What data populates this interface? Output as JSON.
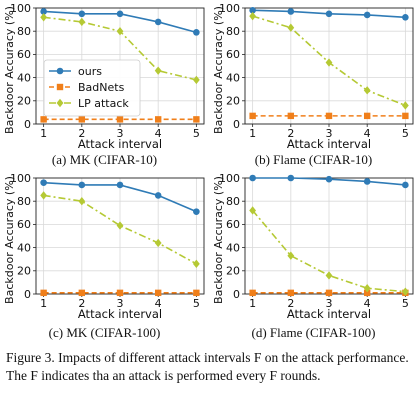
{
  "figure": {
    "caption": "Figure 3.  Impacts of different attack intervals F on the attack performance. The F indicates tha an attack is performed every F rounds."
  },
  "legend_entries": [
    "ours",
    "BadNets",
    "LP attack"
  ],
  "colors": {
    "ours": "#2f7bb6",
    "BadNets": "#f07f1a",
    "LP attack": "#b5c934"
  },
  "chart_data": [
    {
      "type": "line",
      "subcaption": "(a) MK (CIFAR-10)",
      "ylabel": "Backdoor Accuracy (%)",
      "xlabel": "Attack interval",
      "x": [
        1,
        2,
        3,
        4,
        5
      ],
      "xticks": [
        "1",
        "2",
        "3",
        "4",
        "5"
      ],
      "yticks": [
        "0",
        "20",
        "40",
        "60",
        "80",
        "100"
      ],
      "ylim": [
        0,
        100
      ],
      "grid": true,
      "legend": "bottom-left",
      "series": [
        {
          "name": "ours",
          "values": [
            97,
            95,
            95,
            88,
            79
          ]
        },
        {
          "name": "BadNets",
          "values": [
            4,
            4,
            4,
            4,
            4
          ]
        },
        {
          "name": "LP attack",
          "values": [
            92,
            88,
            80,
            46,
            38
          ]
        }
      ]
    },
    {
      "type": "line",
      "subcaption": "(b) Flame (CIFAR-10)",
      "ylabel": "Backdoor Accuracy (%)",
      "xlabel": "Attack interval",
      "x": [
        1,
        2,
        3,
        4,
        5
      ],
      "xticks": [
        "1",
        "2",
        "3",
        "4",
        "5"
      ],
      "yticks": [
        "0",
        "20",
        "40",
        "60",
        "80",
        "100"
      ],
      "ylim": [
        0,
        100
      ],
      "grid": true,
      "series": [
        {
          "name": "ours",
          "values": [
            98,
            97,
            95,
            94,
            92
          ]
        },
        {
          "name": "BadNets",
          "values": [
            7,
            7,
            7,
            7,
            7
          ]
        },
        {
          "name": "LP attack",
          "values": [
            93,
            83,
            53,
            29,
            16
          ]
        }
      ]
    },
    {
      "type": "line",
      "subcaption": "(c) MK (CIFAR-100)",
      "ylabel": "Backdoor Accuracy (%)",
      "xlabel": "Attack interval",
      "x": [
        1,
        2,
        3,
        4,
        5
      ],
      "xticks": [
        "1",
        "2",
        "3",
        "4",
        "5"
      ],
      "yticks": [
        "0",
        "20",
        "40",
        "60",
        "80",
        "100"
      ],
      "ylim": [
        0,
        100
      ],
      "grid": true,
      "series": [
        {
          "name": "ours",
          "values": [
            96,
            94,
            94,
            85,
            71
          ]
        },
        {
          "name": "BadNets",
          "values": [
            1,
            1,
            1,
            1,
            1
          ]
        },
        {
          "name": "LP attack",
          "values": [
            85,
            80,
            59,
            44,
            26
          ]
        }
      ]
    },
    {
      "type": "line",
      "subcaption": "(d) Flame (CIFAR-100)",
      "ylabel": "Backdoor Accuracy (%)",
      "xlabel": "Attack interval",
      "x": [
        1,
        2,
        3,
        4,
        5
      ],
      "xticks": [
        "1",
        "2",
        "3",
        "4",
        "5"
      ],
      "yticks": [
        "0",
        "20",
        "40",
        "60",
        "80",
        "100"
      ],
      "ylim": [
        0,
        100
      ],
      "grid": true,
      "series": [
        {
          "name": "ours",
          "values": [
            100,
            100,
            99,
            97,
            94
          ]
        },
        {
          "name": "BadNets",
          "values": [
            1,
            1,
            1,
            1,
            1
          ]
        },
        {
          "name": "LP attack",
          "values": [
            72,
            33,
            16,
            5,
            2
          ]
        }
      ]
    }
  ]
}
